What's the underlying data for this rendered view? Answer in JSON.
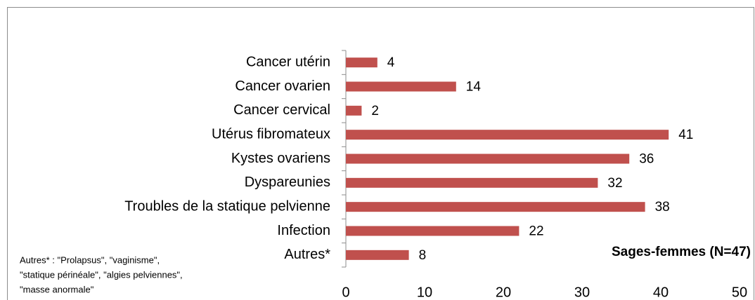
{
  "chart_data": {
    "type": "bar",
    "orientation": "horizontal",
    "categories": [
      "Cancer utérin",
      "Cancer ovarien",
      "Cancer cervical",
      "Utérus fibromateux",
      "Kystes ovariens",
      "Dyspareunies",
      "Troubles de la statique pelvienne",
      "Infection",
      "Autres*"
    ],
    "series": [
      {
        "name": "Sages-femmes (N=47)",
        "color": "#c0504d",
        "values": [
          4,
          14,
          2,
          41,
          36,
          32,
          38,
          22,
          8
        ]
      }
    ],
    "xlim": [
      0,
      50
    ],
    "xticks": [
      0,
      10,
      20,
      30,
      40,
      50
    ],
    "annotation": [
      "Autres* : \"Prolapsus\", \"vaginisme\",",
      "\"statique périnéale\", \"algies pelviennes\",",
      "\"masse anormale\""
    ]
  }
}
